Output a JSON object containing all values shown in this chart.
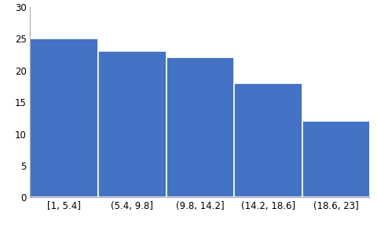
{
  "categories": [
    "[1, 5.4]",
    "(5.4, 9.8]",
    "(9.8, 14.2]",
    "(14.2, 18.6]",
    "(18.6, 23]"
  ],
  "values": [
    25,
    23,
    22,
    18,
    12
  ],
  "bar_color": "#4472C4",
  "bar_edge_color": "white",
  "bar_edge_width": 1.2,
  "ylim": [
    0,
    30
  ],
  "yticks": [
    0,
    5,
    10,
    15,
    20,
    25,
    30
  ],
  "background_color": "#ffffff",
  "tick_fontsize": 8.5,
  "spine_color": "#AAAAAA",
  "bar_width": 1.0
}
